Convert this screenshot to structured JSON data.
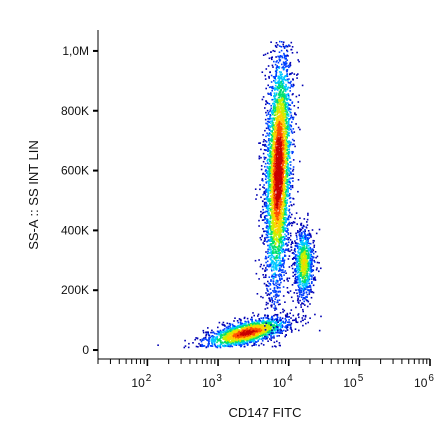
{
  "chart_data": {
    "type": "scatter",
    "subtype": "density flow-cytometry dot plot",
    "title": "",
    "xlabel": "CD147 FITC",
    "ylabel": "SS-A :: SS INT LIN",
    "x_scale": "log",
    "x_ticks": [
      {
        "value": 100,
        "base": "10",
        "exp": "2"
      },
      {
        "value": 1000,
        "base": "10",
        "exp": "3"
      },
      {
        "value": 10000,
        "base": "10",
        "exp": "4"
      },
      {
        "value": 100000,
        "base": "10",
        "exp": "5"
      },
      {
        "value": 1000000,
        "base": "10",
        "exp": "6"
      }
    ],
    "xlim": [
      20,
      1000000
    ],
    "y_scale": "linear",
    "y_ticks": [
      {
        "value": 0,
        "label": "0"
      },
      {
        "value": 200000,
        "label": "200K"
      },
      {
        "value": 400000,
        "label": "400K"
      },
      {
        "value": 600000,
        "label": "600K"
      },
      {
        "value": 800000,
        "label": "800K"
      },
      {
        "value": 1000000,
        "label": "1,0M"
      }
    ],
    "ylim": [
      -30000,
      1070000
    ],
    "colormap": [
      "#0000b4",
      "#0040ff",
      "#00c8ff",
      "#00e070",
      "#c8f000",
      "#ffd000",
      "#ff5000",
      "#c80000"
    ],
    "populations": [
      {
        "center_x": 2500,
        "center_y": 60000,
        "spread_log10_x": 0.3,
        "spread_y": 20000,
        "weight": 1.0
      },
      {
        "center_x": 7000,
        "center_y": 600000,
        "spread_log10_x": 0.09,
        "spread_y": 200000,
        "weight": 2.2
      },
      {
        "center_x": 16000,
        "center_y": 290000,
        "spread_log10_x": 0.07,
        "spread_y": 60000,
        "weight": 0.5
      }
    ]
  }
}
